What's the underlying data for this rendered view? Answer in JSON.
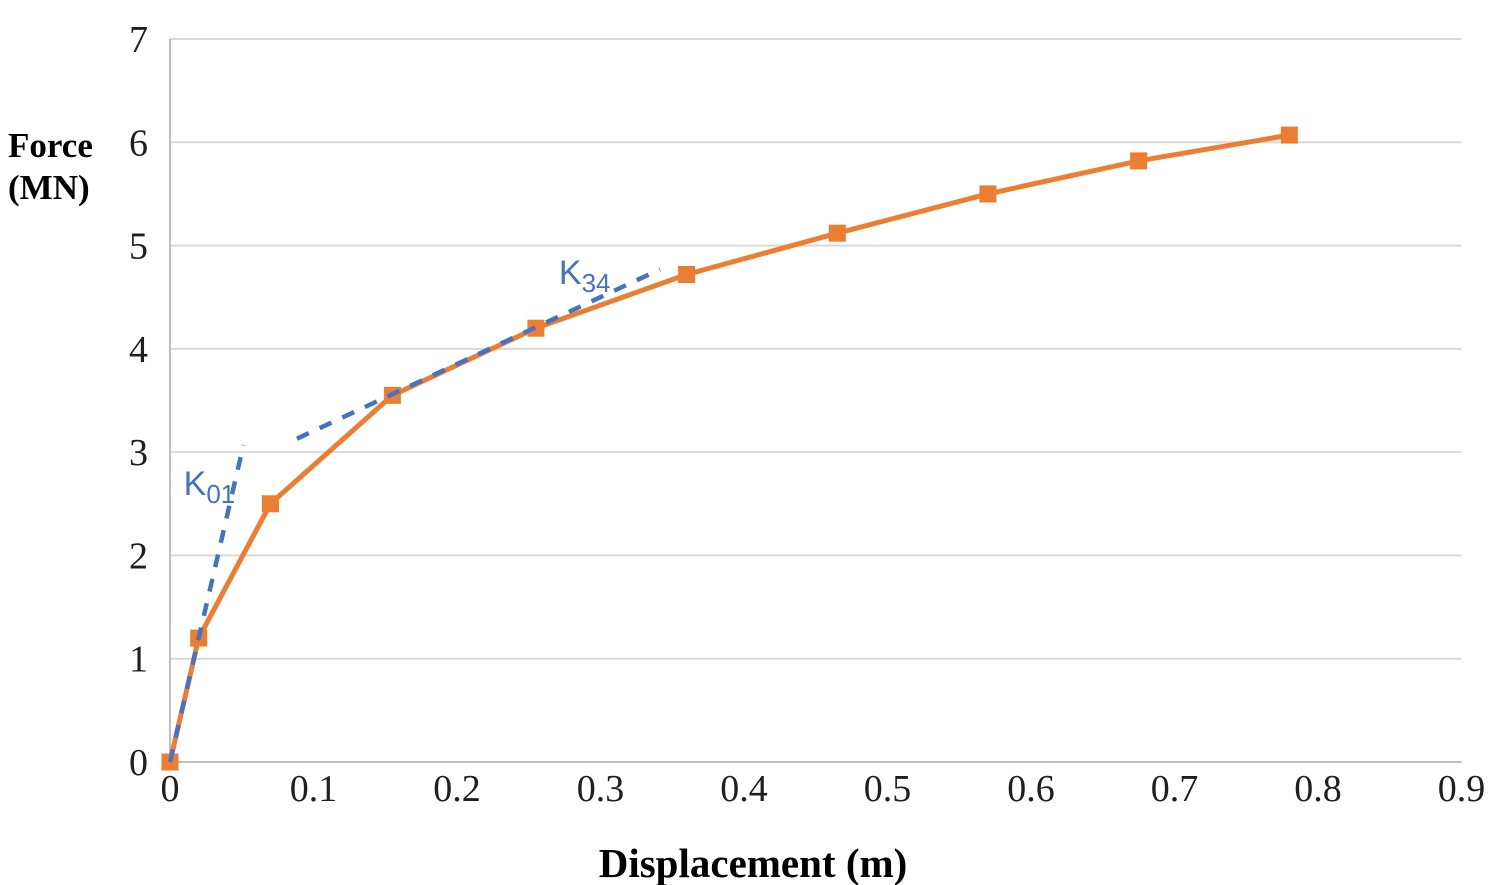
{
  "chart_data": {
    "type": "line",
    "title": "",
    "xlabel": "Displacement (m)",
    "ylabel_lines": [
      "Force",
      "(MN)"
    ],
    "xlim": [
      0,
      0.9
    ],
    "ylim": [
      0,
      7
    ],
    "x_tick_labels": [
      "0",
      "0.1",
      "0.2",
      "0.3",
      "0.4",
      "0.5",
      "0.6",
      "0.7",
      "0.8",
      "0.9"
    ],
    "x_tick_values": [
      0,
      0.1,
      0.2,
      0.3,
      0.4,
      0.5,
      0.6,
      0.7,
      0.8,
      0.9
    ],
    "y_tick_labels": [
      "0",
      "1",
      "2",
      "3",
      "4",
      "5",
      "6",
      "7"
    ],
    "y_tick_values": [
      0,
      1,
      2,
      3,
      4,
      5,
      6,
      7
    ],
    "grid": "horizontal-only",
    "legend": "none",
    "series": [
      {
        "name": "force-displacement-curve",
        "color": "#ED7D31",
        "line_style": "solid",
        "marker": "square",
        "x": [
          0,
          0.02,
          0.07,
          0.155,
          0.255,
          0.36,
          0.465,
          0.57,
          0.675,
          0.78
        ],
        "y": [
          0,
          1.2,
          2.5,
          3.55,
          4.2,
          4.72,
          5.12,
          5.5,
          5.82,
          6.07
        ]
      }
    ],
    "annotations": [
      {
        "name": "K01-stiffness-line",
        "label_main": "K",
        "label_sub": "01",
        "color": "#4472C4",
        "style": "dashed",
        "x1": 0,
        "y1": 0,
        "x2": 0.0512,
        "y2": 3.07,
        "label_x": 0.0095,
        "label_y": 2.585
      },
      {
        "name": "K34-stiffness-line",
        "label_main": "K",
        "label_sub": "34",
        "color": "#4472C4",
        "style": "dashed",
        "x1": 0.0885,
        "y1": 3.13,
        "x2": 0.3415,
        "y2": 4.77,
        "label_x": 0.271,
        "label_y": 4.628
      }
    ],
    "colors": {
      "series": "#ED7D31",
      "annotation": "#4472C4",
      "grid": "#D9D9D9",
      "axis": "#BFBFBF",
      "tick_text": "#1f1f1f",
      "title_text": "#000000"
    }
  }
}
